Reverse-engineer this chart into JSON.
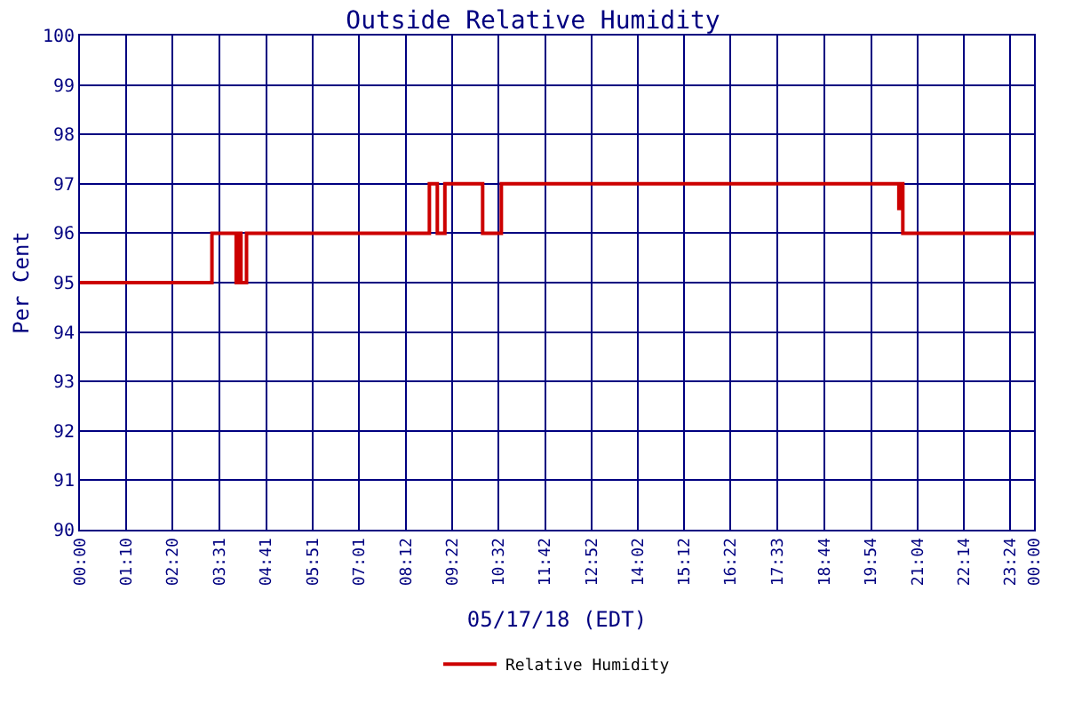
{
  "chart_data": {
    "type": "step",
    "title": "Outside Relative Humidity",
    "xlabel": "05/17/18 (EDT)",
    "ylabel": "Per Cent",
    "x": [
      0,
      3.32,
      3.4,
      3.93,
      4.0,
      4.05,
      4.19,
      8.79,
      8.99,
      9.18,
      10.13,
      10.6,
      20.6,
      20.65,
      20.7,
      24
    ],
    "series": [
      {
        "name": "Relative Humidity",
        "color": "#cc0000",
        "values": [
          95,
          96,
          96,
          95,
          96,
          95,
          96,
          97,
          96,
          97,
          96,
          97,
          96.5,
          97,
          96,
          96
        ]
      }
    ],
    "xlim": [
      0,
      24
    ],
    "xticks": [
      {
        "value": 0,
        "label": "00:00"
      },
      {
        "value": 1.1667,
        "label": "01:10"
      },
      {
        "value": 2.3333,
        "label": "02:20"
      },
      {
        "value": 3.5167,
        "label": "03:31"
      },
      {
        "value": 4.6833,
        "label": "04:41"
      },
      {
        "value": 5.85,
        "label": "05:51"
      },
      {
        "value": 7.0167,
        "label": "07:01"
      },
      {
        "value": 8.2,
        "label": "08:12"
      },
      {
        "value": 9.3667,
        "label": "09:22"
      },
      {
        "value": 10.5333,
        "label": "10:32"
      },
      {
        "value": 11.7,
        "label": "11:42"
      },
      {
        "value": 12.8667,
        "label": "12:52"
      },
      {
        "value": 14.0333,
        "label": "14:02"
      },
      {
        "value": 15.2,
        "label": "15:12"
      },
      {
        "value": 16.3667,
        "label": "16:22"
      },
      {
        "value": 17.55,
        "label": "17:33"
      },
      {
        "value": 18.7333,
        "label": "18:44"
      },
      {
        "value": 19.9,
        "label": "19:54"
      },
      {
        "value": 21.0667,
        "label": "21:04"
      },
      {
        "value": 22.2333,
        "label": "22:14"
      },
      {
        "value": 23.4,
        "label": "23:24"
      },
      {
        "value": 24,
        "label": "00:00"
      }
    ],
    "ylim": [
      90,
      100
    ],
    "yticks": [
      90,
      91,
      92,
      93,
      94,
      95,
      96,
      97,
      98,
      99,
      100
    ],
    "grid": true,
    "legend": "bottom",
    "marker": "none",
    "line_style": "solid"
  }
}
